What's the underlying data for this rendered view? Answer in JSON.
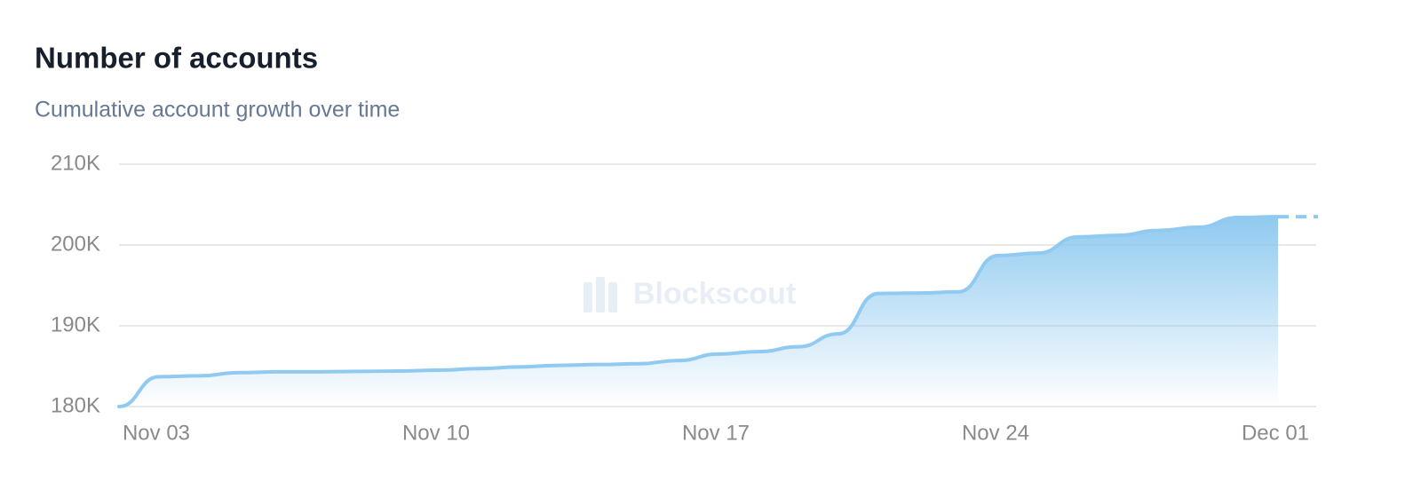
{
  "chart_data": {
    "type": "area",
    "title": "Number of accounts",
    "subtitle": "Cumulative account growth over time",
    "watermark": "Blockscout",
    "categories": [
      null,
      "Nov 03",
      null,
      null,
      null,
      null,
      null,
      null,
      "Nov 10",
      null,
      null,
      null,
      null,
      null,
      null,
      "Nov 17",
      null,
      null,
      null,
      null,
      null,
      null,
      "Nov 24",
      null,
      null,
      null,
      null,
      null,
      null,
      "Dec 01",
      null
    ],
    "values": [
      180000,
      183700,
      183800,
      184200,
      184300,
      184300,
      184350,
      184400,
      184500,
      184700,
      184900,
      185100,
      185200,
      185300,
      185700,
      186500,
      186800,
      187400,
      189000,
      194000,
      194050,
      194200,
      198700,
      199000,
      201000,
      201200,
      201800,
      202200,
      203400,
      203500,
      203500
    ],
    "color": "#90caf0",
    "dashed_last_segment": true,
    "ylim": [
      180000,
      210000
    ],
    "yticks": [
      {
        "value": 180000,
        "label": "180K"
      },
      {
        "value": 190000,
        "label": "190K"
      },
      {
        "value": 200000,
        "label": "200K"
      },
      {
        "value": 210000,
        "label": "210K"
      }
    ],
    "grid": true
  }
}
